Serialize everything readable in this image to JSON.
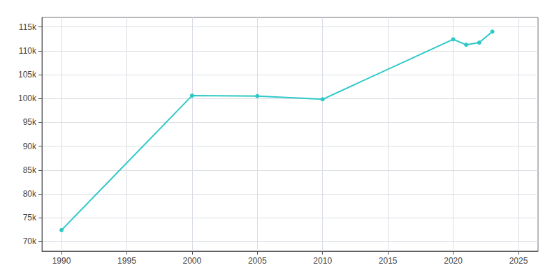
{
  "chart_data": {
    "type": "line",
    "x": [
      1990,
      2000,
      2005,
      2010,
      2020,
      2021,
      2022,
      2023
    ],
    "values": [
      72411,
      100601,
      100508,
      99845,
      112404,
      111264,
      111725,
      114034
    ],
    "color": "#2ec8c8",
    "marker": "circle",
    "xlim": [
      1988.5,
      2026.5
    ],
    "ylim": [
      68000,
      117000
    ],
    "xticks": [
      1990,
      1995,
      2000,
      2005,
      2010,
      2015,
      2020,
      2025
    ],
    "yticks": [
      {
        "value": 70000,
        "label": "70k"
      },
      {
        "value": 75000,
        "label": "75k"
      },
      {
        "value": 80000,
        "label": "80k"
      },
      {
        "value": 85000,
        "label": "85k"
      },
      {
        "value": 90000,
        "label": "90k"
      },
      {
        "value": 95000,
        "label": "95k"
      },
      {
        "value": 100000,
        "label": "100k"
      },
      {
        "value": 105000,
        "label": "105k"
      },
      {
        "value": 110000,
        "label": "110k"
      },
      {
        "value": 115000,
        "label": "115k"
      }
    ],
    "grid": true
  }
}
